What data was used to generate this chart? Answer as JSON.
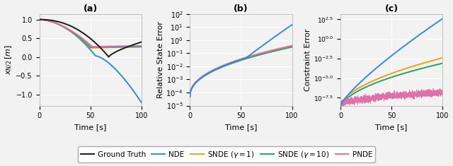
{
  "title_a": "(a)",
  "title_b": "(b)",
  "title_c": "(c)",
  "xlabel": "Time [s]",
  "ylabel_a": "$x_{N/2}\\,[m]$",
  "ylabel_b": "Relative State Error",
  "ylabel_c": "Constraint Error",
  "t_max": 100,
  "colors": {
    "ground_truth": "#1a1a1a",
    "nde": "#3a88d8",
    "snde1": "#e8a020",
    "snde10": "#2ca060",
    "pnde": "#e070a8"
  },
  "legend_labels": [
    "Ground Truth",
    "NDE",
    "SNDE ($\\gamma = 1$)",
    "SNDE ($\\gamma = 10$)",
    "PNDE"
  ],
  "background_color": "#f2f2f2",
  "grid_color": "#ffffff"
}
